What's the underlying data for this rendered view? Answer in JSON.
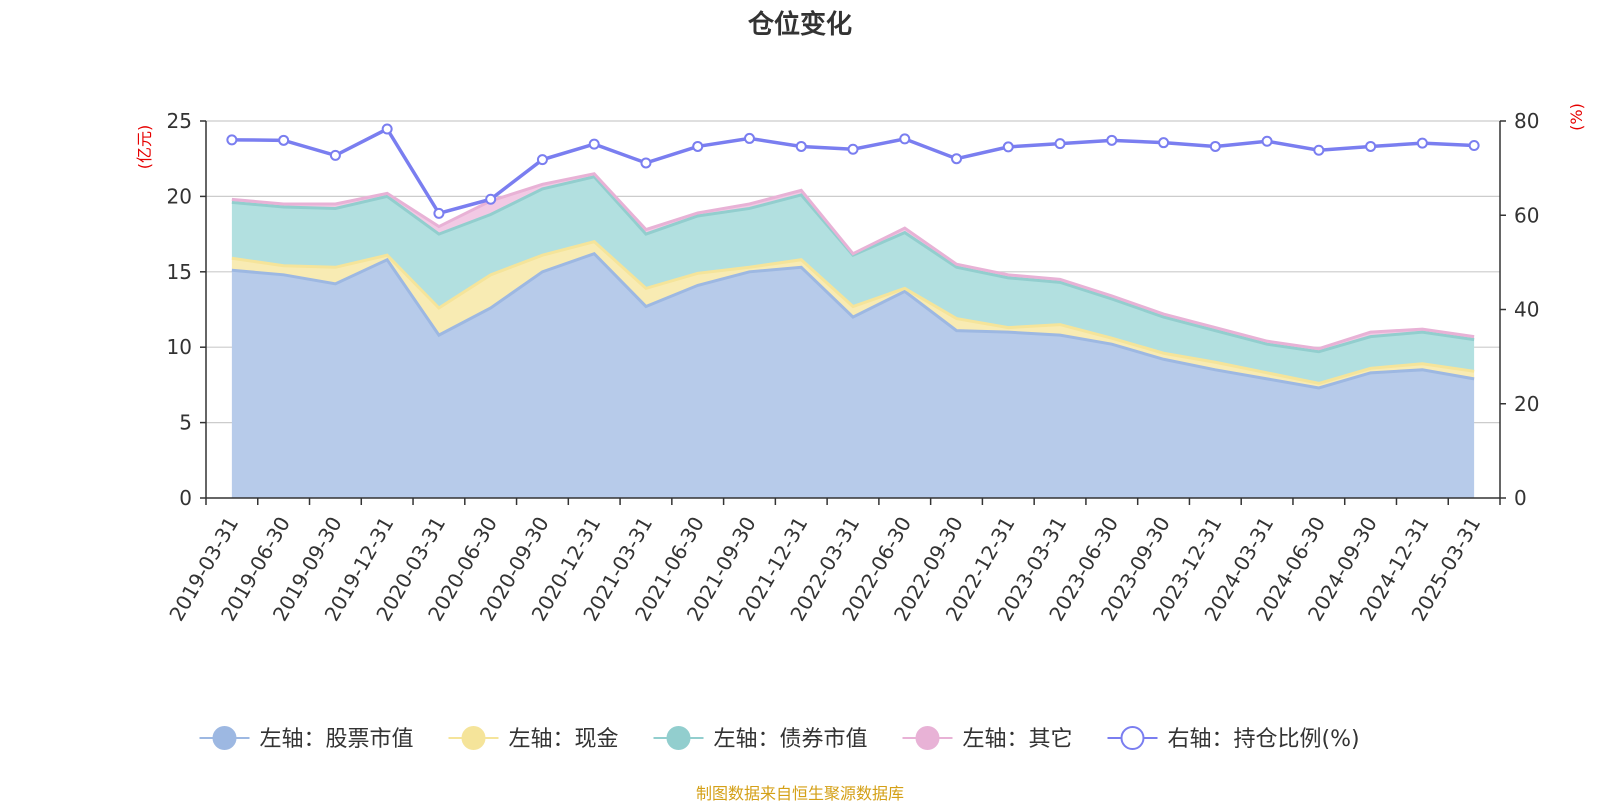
{
  "chart_data": {
    "type": "area",
    "title": "仓位变化",
    "source_note": "制图数据来自恒生聚源数据库",
    "left_axis": {
      "label": "(亿元)",
      "min": 0,
      "max": 25,
      "ticks": [
        "0",
        "5",
        "10",
        "15",
        "20",
        "25"
      ]
    },
    "right_axis": {
      "label": "(%)",
      "min": 0,
      "max": 80,
      "ticks": [
        "0",
        "20",
        "40",
        "60",
        "80"
      ]
    },
    "categories": [
      "2019-03-31",
      "2019-06-30",
      "2019-09-30",
      "2019-12-31",
      "2020-03-31",
      "2020-06-30",
      "2020-09-30",
      "2020-12-31",
      "2021-03-31",
      "2021-06-30",
      "2021-09-30",
      "2021-12-31",
      "2022-03-31",
      "2022-06-30",
      "2022-09-30",
      "2022-12-31",
      "2023-03-31",
      "2023-06-30",
      "2023-09-30",
      "2023-12-31",
      "2024-03-31",
      "2024-06-30",
      "2024-09-30",
      "2024-12-31",
      "2025-03-31"
    ],
    "stacked": true,
    "grid": true,
    "legend_position": "bottom",
    "series": [
      {
        "name": "左轴：股票市值",
        "axis": "left",
        "color": "#9db8e2",
        "fill": "#b7cbea",
        "values": [
          15.1,
          14.8,
          14.2,
          15.8,
          10.8,
          12.6,
          15.0,
          16.2,
          12.7,
          14.1,
          15.0,
          15.3,
          12.0,
          13.7,
          11.1,
          11.0,
          10.8,
          10.2,
          9.2,
          8.5,
          7.9,
          7.3,
          8.3,
          8.5,
          7.9
        ]
      },
      {
        "name": "左轴：现金",
        "axis": "left",
        "color": "#f5e49a",
        "fill": "#f8ebb3",
        "values": [
          0.8,
          0.6,
          1.1,
          0.3,
          1.8,
          2.2,
          1.1,
          0.8,
          1.2,
          0.8,
          0.3,
          0.5,
          0.7,
          0.2,
          0.8,
          0.3,
          0.7,
          0.4,
          0.4,
          0.5,
          0.4,
          0.3,
          0.3,
          0.4,
          0.5
        ]
      },
      {
        "name": "左轴：债券市值",
        "axis": "left",
        "color": "#92cece",
        "fill": "#b2e0e0",
        "values": [
          3.7,
          3.9,
          3.9,
          3.9,
          4.9,
          4.0,
          4.4,
          4.3,
          3.6,
          3.8,
          3.9,
          4.3,
          3.4,
          3.7,
          3.4,
          3.3,
          2.8,
          2.6,
          2.4,
          2.1,
          1.9,
          2.1,
          2.1,
          2.1,
          2.1
        ]
      },
      {
        "name": "左轴：其它",
        "axis": "left",
        "color": "#e8b2d6",
        "fill": "#f2c9e4",
        "values": [
          0.2,
          0.2,
          0.3,
          0.2,
          0.5,
          0.9,
          0.3,
          0.2,
          0.3,
          0.2,
          0.3,
          0.3,
          0.1,
          0.3,
          0.2,
          0.2,
          0.2,
          0.2,
          0.2,
          0.2,
          0.2,
          0.2,
          0.3,
          0.2,
          0.2
        ]
      },
      {
        "name": "右轴：持仓比例(%)",
        "axis": "right",
        "type": "line",
        "color": "#7a7ef0",
        "values": [
          76.0,
          75.9,
          72.7,
          78.3,
          60.4,
          63.4,
          71.8,
          75.1,
          71.1,
          74.6,
          76.3,
          74.6,
          74.0,
          76.2,
          72.0,
          74.5,
          75.2,
          75.9,
          75.4,
          74.6,
          75.7,
          73.8,
          74.6,
          75.3,
          74.8
        ]
      }
    ]
  }
}
